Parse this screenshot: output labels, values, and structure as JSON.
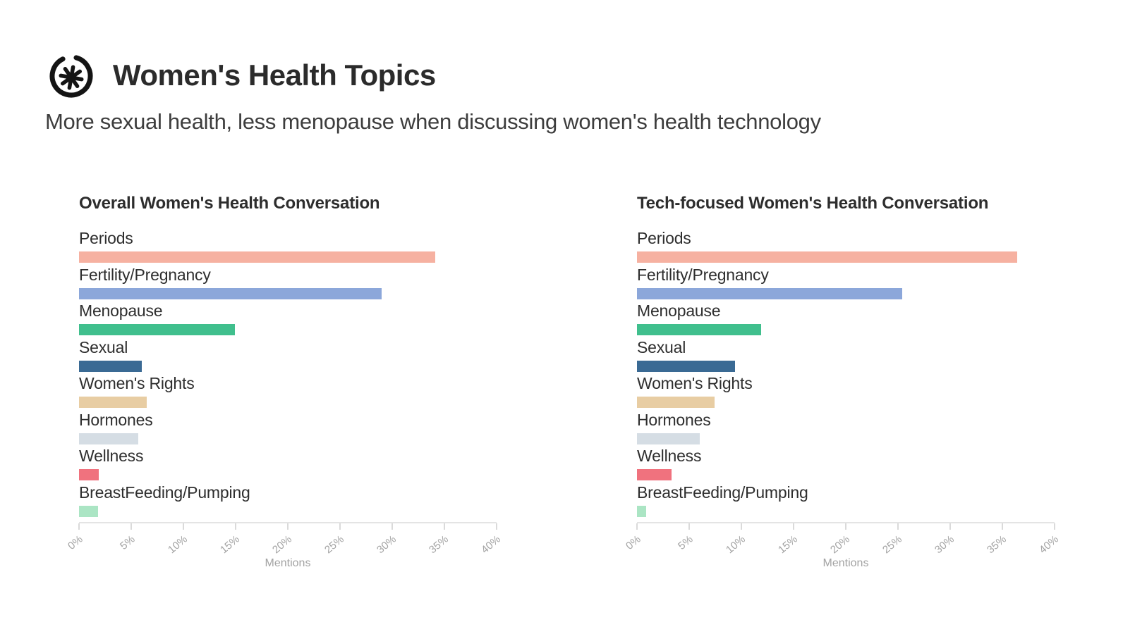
{
  "header": {
    "title": "Women's Health Topics",
    "subtitle": "More sexual health, less menopause when discussing women's health technology",
    "logo_icon": "asterisk-in-circle"
  },
  "chart_data": [
    {
      "type": "bar",
      "orientation": "horizontal",
      "title": "Overall Women's Health Conversation",
      "xlabel": "Mentions",
      "xlim": [
        0,
        40
      ],
      "xtick_labels": [
        "0%",
        "5%",
        "10%",
        "15%",
        "20%",
        "25%",
        "30%",
        "35%",
        "40%"
      ],
      "grid": false,
      "legend": false,
      "categories": [
        "Periods",
        "Fertility/Pregnancy",
        "Menopause",
        "Sexual",
        "Women's Rights",
        "Hormones",
        "Wellness",
        "BreastFeeding/Pumping"
      ],
      "values": [
        34.1,
        29.0,
        14.9,
        6.0,
        6.5,
        5.7,
        1.9,
        1.8
      ],
      "bar_colors": [
        "#f6b1a1",
        "#8ca7da",
        "#40bf8d",
        "#3a6a94",
        "#e8cda3",
        "#d5dde4",
        "#f0727e",
        "#abe5c4"
      ]
    },
    {
      "type": "bar",
      "orientation": "horizontal",
      "title": "Tech-focused Women's Health Conversation",
      "xlabel": "Mentions",
      "xlim": [
        0,
        40
      ],
      "xtick_labels": [
        "0%",
        "5%",
        "10%",
        "15%",
        "20%",
        "25%",
        "30%",
        "35%",
        "40%"
      ],
      "grid": false,
      "legend": false,
      "categories": [
        "Periods",
        "Fertility/Pregnancy",
        "Menopause",
        "Sexual",
        "Women's Rights",
        "Hormones",
        "Wellness",
        "BreastFeeding/Pumping"
      ],
      "values": [
        36.4,
        25.4,
        11.9,
        9.4,
        7.4,
        6.0,
        3.3,
        0.9
      ],
      "bar_colors": [
        "#f6b1a1",
        "#8ca7da",
        "#40bf8d",
        "#3a6a94",
        "#e8cda3",
        "#d5dde4",
        "#f0727e",
        "#abe5c4"
      ]
    }
  ],
  "colors": {
    "title_text": "#2b2b2b",
    "subtitle_text": "#3d3d3d",
    "label_text": "#2e2e2e",
    "tick_text": "#a3a3a3",
    "axis_line": "#e4e4e4",
    "logo": "#141414",
    "background": "#ffffff"
  }
}
